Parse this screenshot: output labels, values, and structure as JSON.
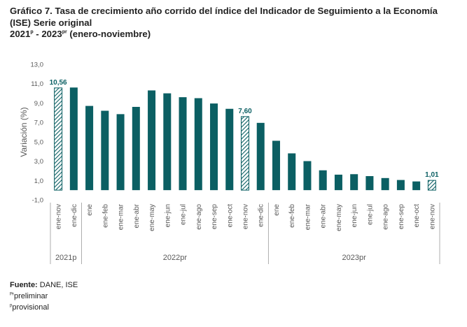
{
  "title": {
    "line1": "Gráfico 7. Tasa de crecimiento año corrido del índice del Indicador de Seguimiento a la Economía",
    "line2": "(ISE) Serie original",
    "line3_a": "2021",
    "line3_sup1": "p",
    "line3_b": " - 2023",
    "line3_sup2": "pr",
    "line3_c": " (enero-noviembre)"
  },
  "footer": {
    "source_label": "Fuente:",
    "source_value": " DANE, ISE",
    "note1_sup": "Pr",
    "note1_text": "preliminar",
    "note2_sup": "p",
    "note2_text": "provisional"
  },
  "colors": {
    "bar": "#0b5f63",
    "hatch": "#0b5f63",
    "label": "#0b5f63",
    "axis_text": "#595959"
  },
  "chart_data": {
    "type": "bar",
    "title": "Tasa de crecimiento año corrido del índice del Indicador de Seguimiento a la Economía (ISE) Serie original",
    "xlabel": "",
    "ylabel": "Variación (%)",
    "ylim": [
      -1.0,
      13.0
    ],
    "yticks": [
      "13,0",
      "11,0",
      "9,0",
      "7,0",
      "5,0",
      "3,0",
      "1,0",
      "-1,0"
    ],
    "categories": [
      "ene-nov",
      "ene-dic",
      "ene",
      "ene-feb",
      "ene-mar",
      "ene-abr",
      "ene-may",
      "ene-jun",
      "ene-jul",
      "ene-ago",
      "ene-sep",
      "ene-oct",
      "ene-nov",
      "ene-dic",
      "ene",
      "ene-feb",
      "ene-mar",
      "ene-abr",
      "ene-may",
      "ene-jun",
      "ene-jul",
      "ene-ago",
      "ene-sep",
      "ene-oct",
      "ene-nov"
    ],
    "values": [
      10.56,
      10.6,
      8.7,
      8.2,
      7.85,
      8.6,
      10.3,
      10.0,
      9.6,
      9.5,
      8.95,
      8.4,
      7.6,
      6.95,
      5.1,
      3.8,
      3.0,
      2.05,
      1.6,
      1.65,
      1.45,
      1.25,
      1.05,
      0.9,
      1.01
    ],
    "hatched": [
      true,
      false,
      false,
      false,
      false,
      false,
      false,
      false,
      false,
      false,
      false,
      false,
      true,
      false,
      false,
      false,
      false,
      false,
      false,
      false,
      false,
      false,
      false,
      false,
      true
    ],
    "data_labels": [
      {
        "index": 0,
        "text": "10,56"
      },
      {
        "index": 12,
        "text": "7,60"
      },
      {
        "index": 24,
        "text": "1,01"
      }
    ],
    "year_groups": [
      {
        "label": "2021p",
        "start": 0,
        "end": 1
      },
      {
        "label": "2022pr",
        "start": 2,
        "end": 13
      },
      {
        "label": "2023pr",
        "start": 14,
        "end": 24
      }
    ]
  }
}
